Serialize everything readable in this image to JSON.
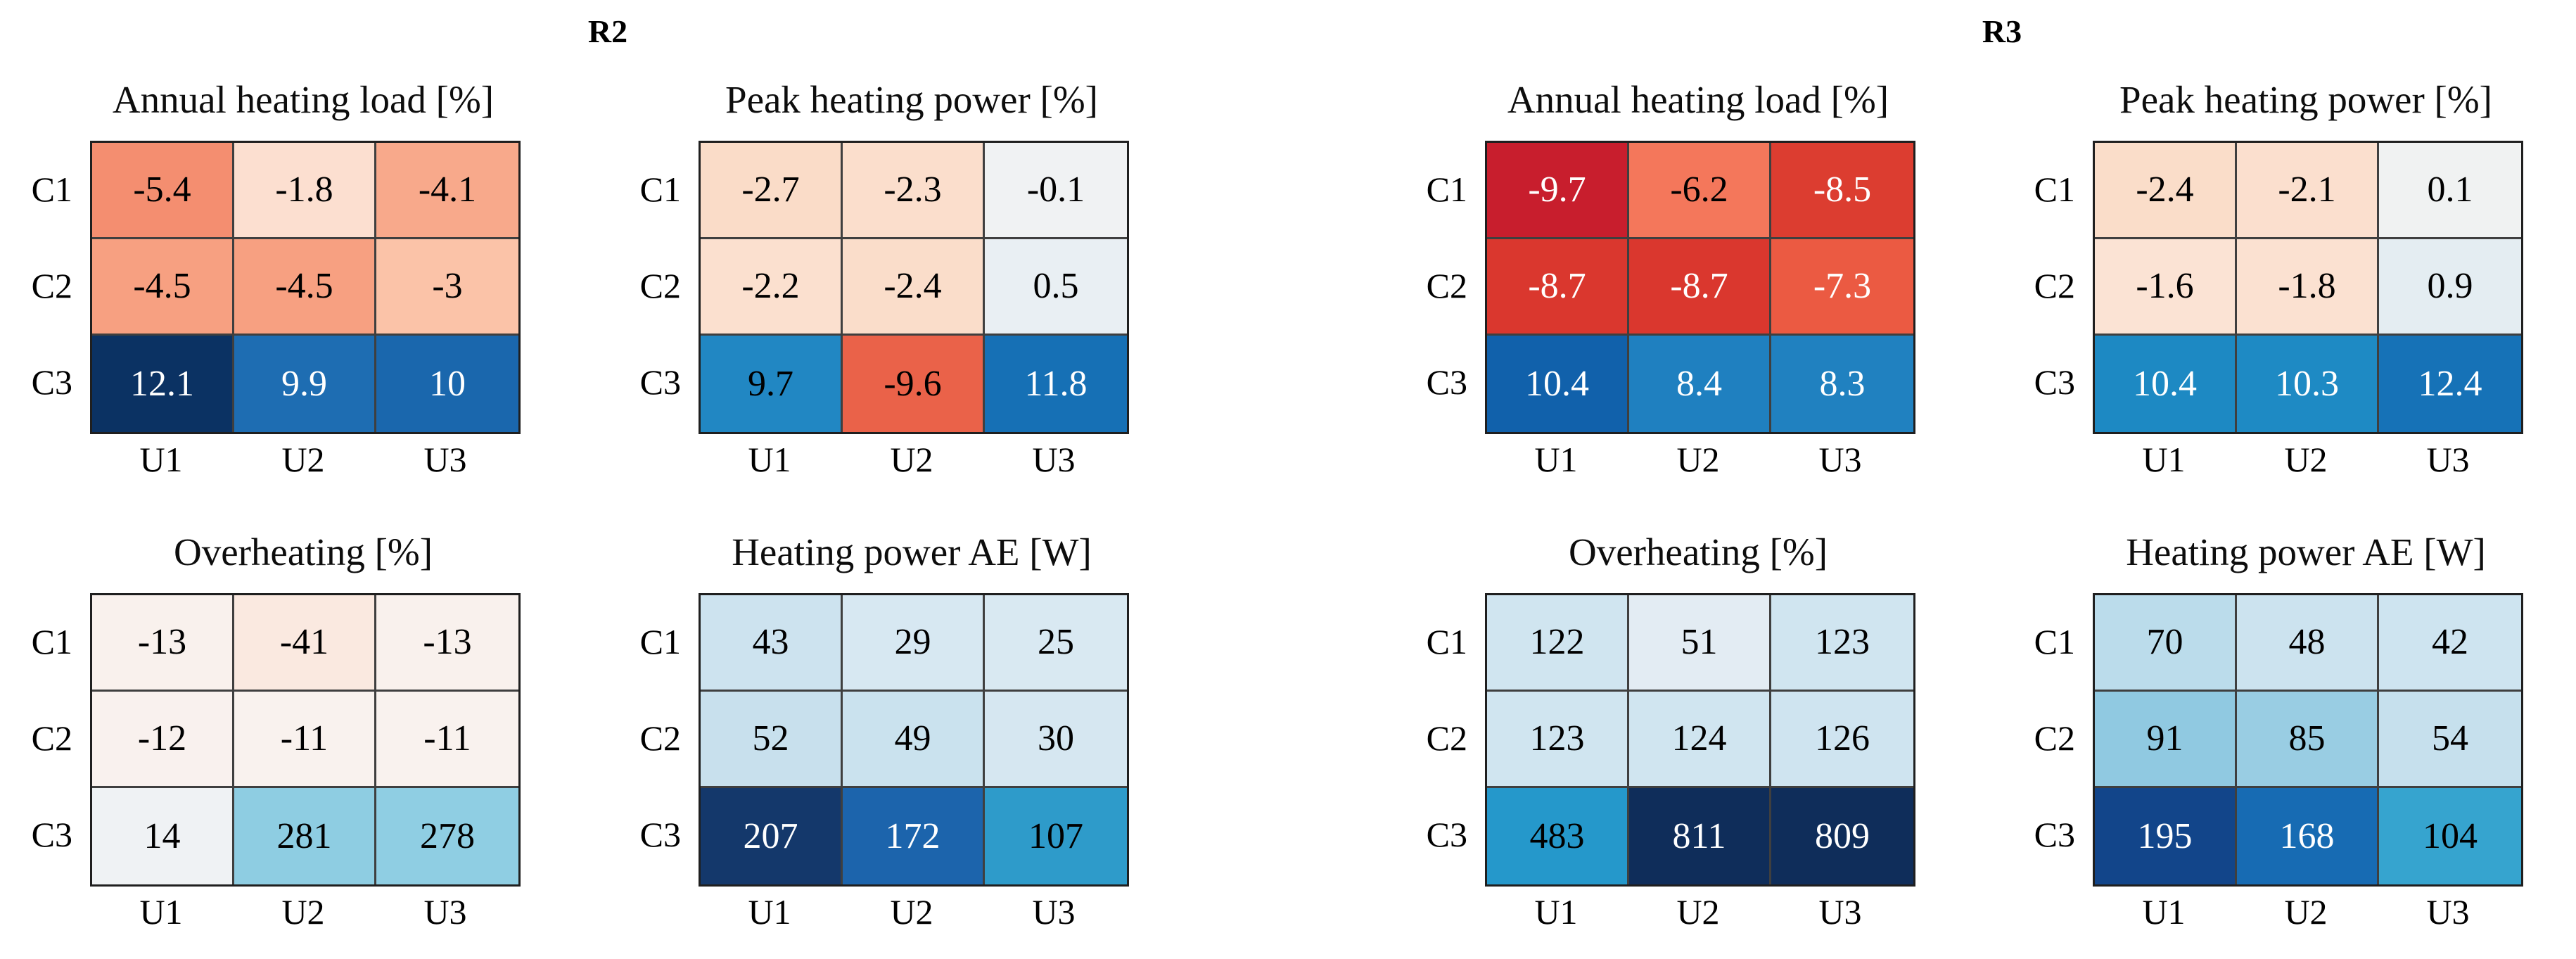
{
  "figure": {
    "background": "#FFFFFF",
    "grid_line_color": "#3F3F3F",
    "outer_border_color": "#1F1F1F",
    "text_color": "#000000"
  },
  "regions": [
    {
      "label": "R2",
      "heatmap_indices": [
        0,
        1,
        2,
        3
      ]
    },
    {
      "label": "R3",
      "heatmap_indices": [
        4,
        5,
        6,
        7
      ]
    }
  ],
  "chart_data": [
    {
      "type": "heatmap",
      "region": "R2",
      "title": "Annual heating load [%]",
      "rows": [
        "C1",
        "C2",
        "C3"
      ],
      "columns": [
        "U1",
        "U2",
        "U3"
      ],
      "values": [
        [
          -5.4,
          -1.8,
          -4.1
        ],
        [
          -4.5,
          -4.5,
          -3
        ],
        [
          12.1,
          9.9,
          10
        ]
      ],
      "colormap": "red-blue diverging (RdBu)",
      "legend": "none",
      "cell_colors": [
        [
          "#F48E70",
          "#FCDFD0",
          "#F8A98B"
        ],
        [
          "#F7A081",
          "#F7A081",
          "#FBC3A8"
        ],
        [
          "#0B3263",
          "#1E6DB2",
          "#1A67AD"
        ]
      ],
      "text_colors": [
        [
          "#000000",
          "#000000",
          "#000000"
        ],
        [
          "#000000",
          "#000000",
          "#000000"
        ],
        [
          "#FFFFFF",
          "#FFFFFF",
          "#FFFFFF"
        ]
      ]
    },
    {
      "type": "heatmap",
      "region": "R2",
      "title": "Peak heating power [%]",
      "rows": [
        "C1",
        "C2",
        "C3"
      ],
      "columns": [
        "U1",
        "U2",
        "U3"
      ],
      "values": [
        [
          -2.7,
          -2.3,
          -0.1
        ],
        [
          -2.2,
          -2.4,
          0.5
        ],
        [
          9.7,
          -9.6,
          11.8
        ]
      ],
      "colormap": "red-blue diverging (RdBu)",
      "legend": "none",
      "cell_colors": [
        [
          "#FADCC8",
          "#FBDECC",
          "#F0F2F3"
        ],
        [
          "#FBE0CF",
          "#FADDCA",
          "#E9EFF3"
        ],
        [
          "#2187C3",
          "#EA6249",
          "#1670B5"
        ]
      ],
      "text_colors": [
        [
          "#000000",
          "#000000",
          "#000000"
        ],
        [
          "#000000",
          "#000000",
          "#000000"
        ],
        [
          "#000000",
          "#000000",
          "#FFFFFF"
        ]
      ]
    },
    {
      "type": "heatmap",
      "region": "R2",
      "title": "Overheating [%]",
      "rows": [
        "C1",
        "C2",
        "C3"
      ],
      "columns": [
        "U1",
        "U2",
        "U3"
      ],
      "values": [
        [
          -13,
          -41,
          -13
        ],
        [
          -12,
          -11,
          -11
        ],
        [
          14,
          281,
          278
        ]
      ],
      "colormap": "red-blue diverging (RdBu)",
      "legend": "none",
      "cell_colors": [
        [
          "#F9F1ED",
          "#FAE9E0",
          "#F9F1ED"
        ],
        [
          "#F9F1EE",
          "#F9F2EE",
          "#F9F2EE"
        ],
        [
          "#EFF2F4",
          "#8ECDE2",
          "#8FCEE3"
        ]
      ],
      "text_colors": [
        [
          "#000000",
          "#000000",
          "#000000"
        ],
        [
          "#000000",
          "#000000",
          "#000000"
        ],
        [
          "#000000",
          "#000000",
          "#000000"
        ]
      ]
    },
    {
      "type": "heatmap",
      "region": "R2",
      "title": "Heating power AE [W]",
      "rows": [
        "C1",
        "C2",
        "C3"
      ],
      "columns": [
        "U1",
        "U2",
        "U3"
      ],
      "values": [
        [
          43,
          29,
          25
        ],
        [
          52,
          49,
          30
        ],
        [
          207,
          172,
          107
        ]
      ],
      "colormap": "red-blue diverging (RdBu)",
      "legend": "none",
      "cell_colors": [
        [
          "#CDE3EF",
          "#D7E8F2",
          "#D9E9F2"
        ],
        [
          "#C8E0ED",
          "#CAE2EE",
          "#D6E7F1"
        ],
        [
          "#14386B",
          "#1C64AC",
          "#2E9BCA"
        ]
      ],
      "text_colors": [
        [
          "#000000",
          "#000000",
          "#000000"
        ],
        [
          "#000000",
          "#000000",
          "#000000"
        ],
        [
          "#FFFFFF",
          "#FFFFFF",
          "#000000"
        ]
      ]
    },
    {
      "type": "heatmap",
      "region": "R3",
      "title": "Annual heating load [%]",
      "rows": [
        "C1",
        "C2",
        "C3"
      ],
      "columns": [
        "U1",
        "U2",
        "U3"
      ],
      "values": [
        [
          -9.7,
          -6.2,
          -8.5
        ],
        [
          -8.7,
          -8.7,
          -7.3
        ],
        [
          10.4,
          8.4,
          8.3
        ]
      ],
      "colormap": "red-blue diverging (RdBu)",
      "legend": "none",
      "cell_colors": [
        [
          "#C81E2D",
          "#F4775B",
          "#DC3D30"
        ],
        [
          "#DA372E",
          "#DA372E",
          "#EB5A42"
        ],
        [
          "#1161AB",
          "#1F80C0",
          "#2081C0"
        ]
      ],
      "text_colors": [
        [
          "#FFFFFF",
          "#000000",
          "#FFFFFF"
        ],
        [
          "#FFFFFF",
          "#FFFFFF",
          "#FFFFFF"
        ],
        [
          "#FFFFFF",
          "#FFFFFF",
          "#FFFFFF"
        ]
      ]
    },
    {
      "type": "heatmap",
      "region": "R3",
      "title": "Peak heating power [%]",
      "rows": [
        "C1",
        "C2",
        "C3"
      ],
      "columns": [
        "U1",
        "U2",
        "U3"
      ],
      "values": [
        [
          -2.4,
          -2.1,
          0.1
        ],
        [
          -1.6,
          -1.8,
          0.9
        ],
        [
          10.4,
          10.3,
          12.4
        ]
      ],
      "colormap": "red-blue diverging (RdBu)",
      "legend": "none",
      "cell_colors": [
        [
          "#FADDC9",
          "#FBDFCE",
          "#F0F2F2"
        ],
        [
          "#FBE3D4",
          "#FBE1D1",
          "#E4EDF2"
        ],
        [
          "#1D89C3",
          "#1E8AC4",
          "#1672B7"
        ]
      ],
      "text_colors": [
        [
          "#000000",
          "#000000",
          "#000000"
        ],
        [
          "#000000",
          "#000000",
          "#000000"
        ],
        [
          "#FFFFFF",
          "#FFFFFF",
          "#FFFFFF"
        ]
      ]
    },
    {
      "type": "heatmap",
      "region": "R3",
      "title": "Overheating [%]",
      "rows": [
        "C1",
        "C2",
        "C3"
      ],
      "columns": [
        "U1",
        "U2",
        "U3"
      ],
      "values": [
        [
          122,
          51,
          123
        ],
        [
          123,
          124,
          126
        ],
        [
          483,
          811,
          809
        ]
      ],
      "colormap": "red-blue diverging (RdBu)",
      "legend": "none",
      "cell_colors": [
        [
          "#D0E5F0",
          "#E3ECF3",
          "#D0E5F0"
        ],
        [
          "#D0E5F0",
          "#D0E5F0",
          "#CFE4F0"
        ],
        [
          "#2598CB",
          "#0F2D5A",
          "#0F2D5A"
        ]
      ],
      "text_colors": [
        [
          "#000000",
          "#000000",
          "#000000"
        ],
        [
          "#000000",
          "#000000",
          "#000000"
        ],
        [
          "#000000",
          "#FFFFFF",
          "#FFFFFF"
        ]
      ]
    },
    {
      "type": "heatmap",
      "region": "R3",
      "title": "Heating power AE [W]",
      "rows": [
        "C1",
        "C2",
        "C3"
      ],
      "columns": [
        "U1",
        "U2",
        "U3"
      ],
      "values": [
        [
          70,
          48,
          42
        ],
        [
          91,
          85,
          54
        ],
        [
          195,
          168,
          104
        ]
      ],
      "colormap": "red-blue diverging (RdBu)",
      "legend": "none",
      "cell_colors": [
        [
          "#BBDCEB",
          "#CCE3EF",
          "#CEE4F0"
        ],
        [
          "#90C9E1",
          "#99CDE3",
          "#C6E0ED"
        ],
        [
          "#12458A",
          "#176BB3",
          "#36A4CF"
        ]
      ],
      "text_colors": [
        [
          "#000000",
          "#000000",
          "#000000"
        ],
        [
          "#000000",
          "#000000",
          "#000000"
        ],
        [
          "#FFFFFF",
          "#FFFFFF",
          "#000000"
        ]
      ]
    }
  ]
}
